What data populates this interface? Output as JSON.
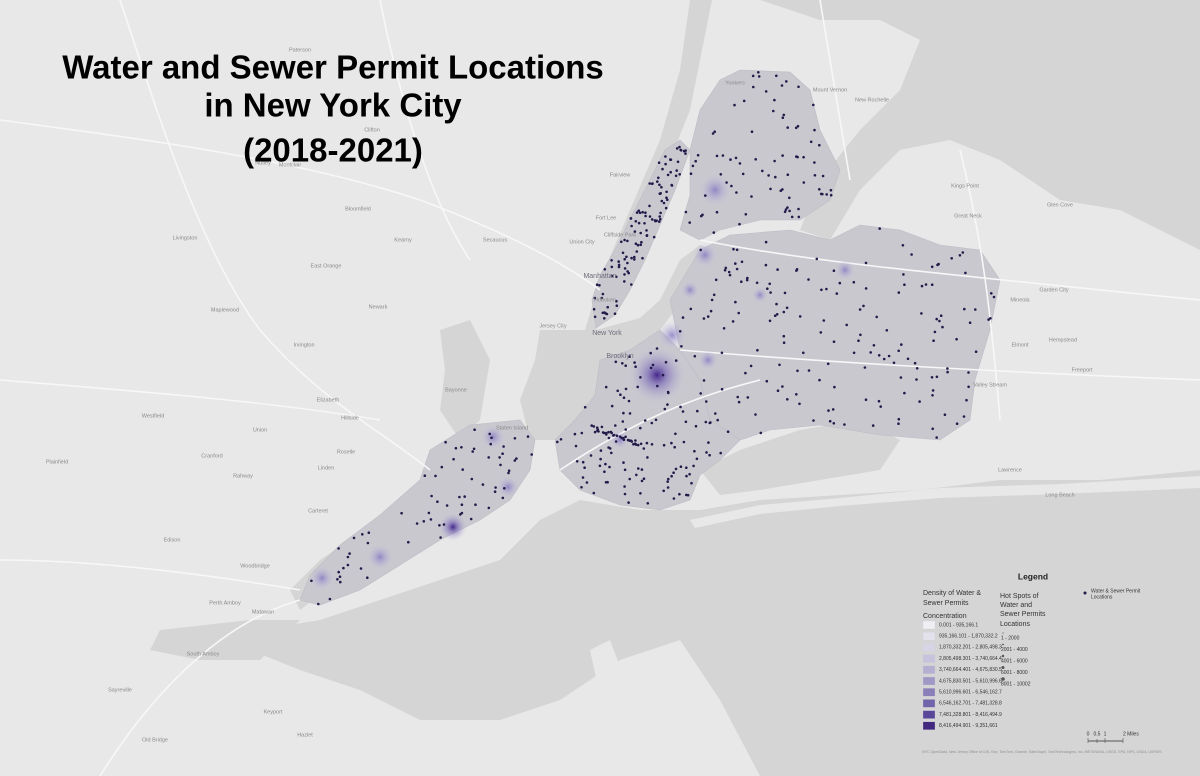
{
  "title": [
    "Water and Sewer Permit Locations",
    "in New York City",
    "(2018-2021)"
  ],
  "legend": {
    "heading": "Legend",
    "density": {
      "title": [
        "Density of Water &",
        "Sewer Permits"
      ],
      "field": "Concentration",
      "classes": [
        "0.001 - 935,166.1",
        "935,166.101 - 1,870,332.2",
        "1,870,332.201 - 2,805,498.3",
        "2,805,498.301 - 3,740,664.4",
        "3,740,664.401 - 4,675,830.5",
        "4,675,830.501 - 5,610,996.6",
        "5,610,996.601 - 6,546,162.7",
        "6,546,162.701 - 7,481,328.8",
        "7,481,328.801 - 8,416,494.9",
        "8,416,494.901 - 9,351,661"
      ],
      "colors": [
        "#efeff3",
        "#e3e2ec",
        "#d6d4e5",
        "#c7c3dc",
        "#b5afd2",
        "#a098c6",
        "#8a7fb9",
        "#7264aa",
        "#5a4799",
        "#43287f"
      ]
    },
    "hotspots": {
      "title": [
        "Hot Spots of",
        "Water and",
        "Sewer Permits"
      ],
      "field": "Locations",
      "classes": [
        "1 - 2000",
        "2001 - 4000",
        "4001 - 6000",
        "6001 - 8000",
        "8001 - 10002"
      ]
    },
    "points": {
      "label": [
        "Water & Sewer Permit",
        "Locations"
      ],
      "color": "#241a4a"
    }
  },
  "scale": [
    "0",
    "0.5",
    "1",
    "2 Miles"
  ],
  "attribution": "NYC OpenData, New Jersey Office of GIS, Esri, TomTom, Garmin, SafeGraph, GeoTechnologies, Inc, METI/NASA, USGS, EPA, NPS, USDA, USFWS",
  "places": [
    "Manhattan",
    "New York",
    "Brooklyn",
    "Jersey City",
    "Staten Island",
    "Newark",
    "Elizabeth",
    "Bayonne",
    "Yonkers",
    "New Rochelle",
    "Mount Vernon",
    "Union City",
    "Hoboken",
    "Fort Lee",
    "Clifton",
    "Paterson",
    "East Orange",
    "Irvington",
    "Linden",
    "Rahway",
    "Carteret",
    "Perth Amboy",
    "Woodbridge",
    "Edison",
    "Great Neck",
    "Hempstead",
    "Garden City",
    "Freeport",
    "Long Beach",
    "Valley Stream",
    "Lawrence",
    "Elmont",
    "Mineola",
    "Kings Point",
    "Glen Cove",
    "Westfield",
    "Plainfield",
    "Cranford",
    "Union",
    "Kearny",
    "Nutley",
    "Bloomfield",
    "Montclair",
    "Livingston",
    "Maplewood",
    "Hillside",
    "Roselle",
    "Secaucus",
    "Sayreville",
    "South Amboy",
    "Old Bridge",
    "Matawan",
    "Keyport",
    "Hazlet",
    "Fairview",
    "Cliffside Park"
  ]
}
